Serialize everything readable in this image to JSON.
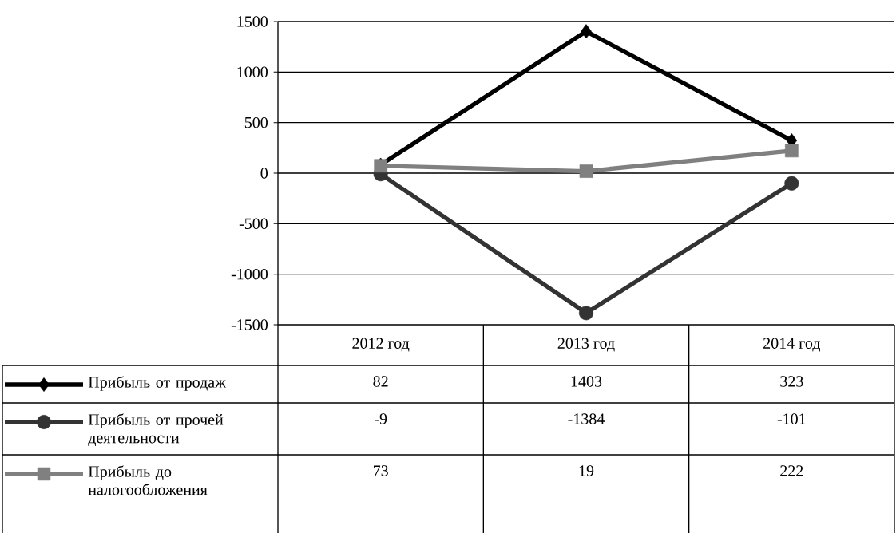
{
  "chart_data": {
    "type": "line",
    "categories": [
      "2012 год",
      "2013 год",
      "2014 год"
    ],
    "series": [
      {
        "name": "Прибыль от продаж",
        "color": "#000000",
        "marker": "diamond",
        "values": [
          82,
          1403,
          323
        ]
      },
      {
        "name": "Прибыль от прочей деятельности",
        "color": "#333333",
        "marker": "circle",
        "values": [
          -9,
          -1384,
          -101
        ]
      },
      {
        "name": "Прибыль до налогообложения",
        "color": "#808080",
        "marker": "square",
        "values": [
          73,
          19,
          222
        ]
      }
    ],
    "ylim": [
      -1500,
      1500
    ],
    "yticks": [
      -1500,
      -1000,
      -500,
      0,
      500,
      1000,
      1500
    ],
    "grid": "y",
    "legend": "bottom left",
    "data_labels": true
  }
}
